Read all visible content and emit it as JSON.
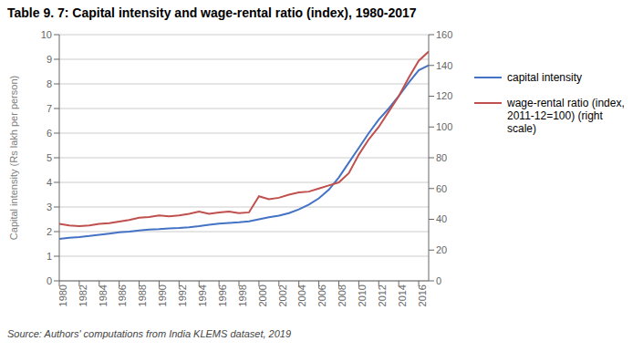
{
  "chart_data": {
    "type": "line",
    "title": "Table 9. 7: Capital intensity and wage-rental ratio (index), 1980-2017",
    "annotations": [
      "Source: Authors' computations from India KLEMS dataset, 2019"
    ],
    "ylabel": "Capital intensity (Rs lakh per person)",
    "x": [
      1980,
      1981,
      1982,
      1983,
      1984,
      1985,
      1986,
      1987,
      1988,
      1989,
      1990,
      1991,
      1992,
      1993,
      1994,
      1995,
      1996,
      1997,
      1998,
      1999,
      2000,
      2001,
      2002,
      2003,
      2004,
      2005,
      2006,
      2007,
      2008,
      2009,
      2010,
      2011,
      2012,
      2013,
      2014,
      2015,
      2016,
      2017
    ],
    "series": [
      {
        "name": "capital intensity",
        "color": "#4472C4",
        "values": [
          1.7,
          1.75,
          1.78,
          1.82,
          1.87,
          1.92,
          1.97,
          2.0,
          2.05,
          2.08,
          2.1,
          2.13,
          2.15,
          2.18,
          2.22,
          2.28,
          2.32,
          2.35,
          2.38,
          2.42,
          2.5,
          2.58,
          2.65,
          2.75,
          2.9,
          3.1,
          3.35,
          3.7,
          4.2,
          4.8,
          5.4,
          6.0,
          6.55,
          7.0,
          7.5,
          8.05,
          8.55,
          8.75
        ]
      },
      {
        "name": "wage-rental ratio (index, 2011-12=100) (right scale)",
        "color": "#C0504D",
        "axis": "y2",
        "values": [
          37.0,
          36.0,
          35.5,
          36.0,
          37.0,
          37.5,
          38.5,
          39.5,
          41.0,
          41.5,
          42.5,
          42.0,
          42.5,
          43.5,
          45.0,
          43.5,
          44.5,
          45.0,
          44.0,
          44.5,
          55.0,
          53.0,
          54.0,
          56.0,
          57.5,
          58.0,
          60.0,
          62.0,
          64.0,
          70.0,
          82.0,
          92.0,
          100.0,
          110.0,
          120.0,
          132.0,
          143.0,
          149.0
        ]
      }
    ],
    "xlim": [
      1980,
      2017
    ],
    "xticks": [
      1980,
      1982,
      1984,
      1986,
      1988,
      1990,
      1992,
      1994,
      1996,
      1998,
      2000,
      2002,
      2004,
      2006,
      2008,
      2010,
      2012,
      2014,
      2016
    ],
    "ylim": [
      0,
      10
    ],
    "yticks": [
      0,
      1,
      2,
      3,
      4,
      5,
      6,
      7,
      8,
      9,
      10
    ],
    "y2lim": [
      0,
      160
    ],
    "y2ticks": [
      0,
      20,
      40,
      60,
      80,
      100,
      120,
      140,
      160
    ],
    "grid": true,
    "legend": "right"
  }
}
